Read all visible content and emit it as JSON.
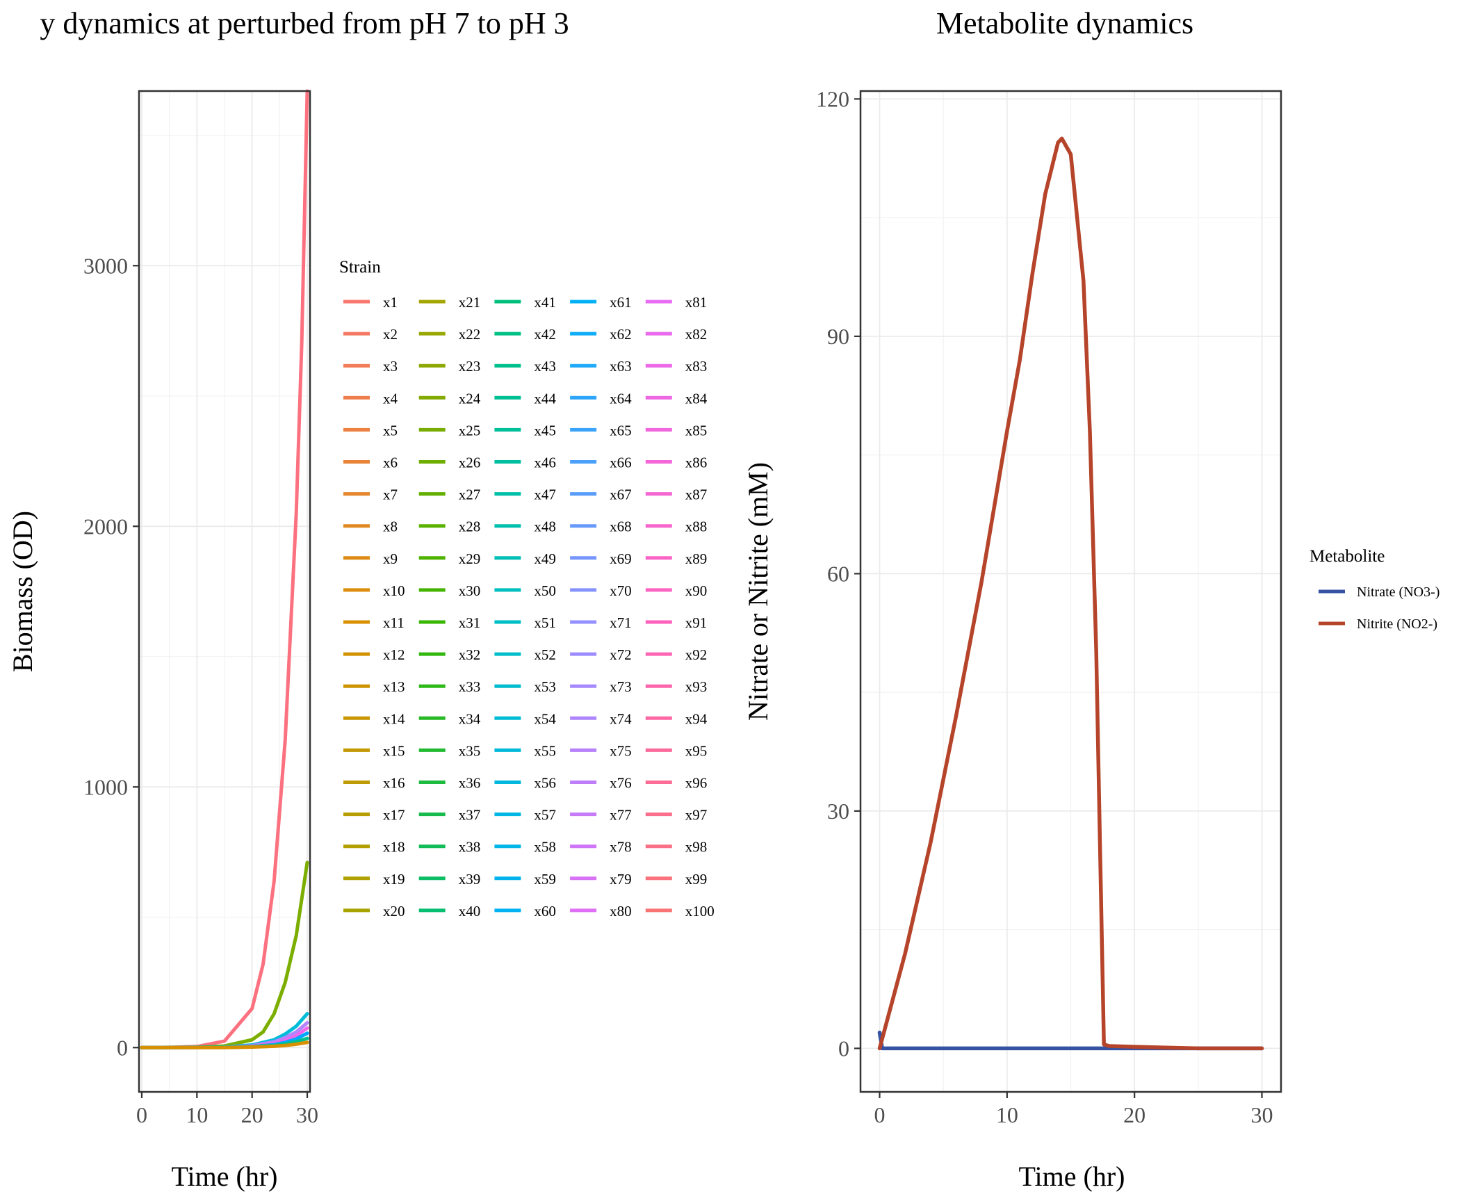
{
  "chart_data": [
    {
      "type": "line",
      "title": "y dynamics at perturbed from pH 7 to pH 3",
      "xlabel": "Time (hr)",
      "ylabel": "Biomass (OD)",
      "xlim": [
        -0.5,
        30.5
      ],
      "ylim": [
        -170,
        3670
      ],
      "xticks": [
        0,
        10,
        20,
        30
      ],
      "xtick_labels": [
        "0",
        "10",
        "20",
        "30"
      ],
      "yticks": [
        0,
        1000,
        2000,
        3000
      ],
      "ytick_labels": [
        "0",
        "1000",
        "2000",
        "3000"
      ],
      "grid": true,
      "legend_title": "Strain",
      "legend_position": "right",
      "legend_columns": 5,
      "legend_labels": [
        "x1",
        "x2",
        "x3",
        "x4",
        "x5",
        "x6",
        "x7",
        "x8",
        "x9",
        "x10",
        "x11",
        "x12",
        "x13",
        "x14",
        "x15",
        "x16",
        "x17",
        "x18",
        "x19",
        "x20",
        "x21",
        "x22",
        "x23",
        "x24",
        "x25",
        "x26",
        "x27",
        "x28",
        "x29",
        "x30",
        "x31",
        "x32",
        "x33",
        "x34",
        "x35",
        "x36",
        "x37",
        "x38",
        "x39",
        "x40",
        "x41",
        "x42",
        "x43",
        "x44",
        "x45",
        "x46",
        "x47",
        "x48",
        "x49",
        "x50",
        "x51",
        "x52",
        "x53",
        "x54",
        "x55",
        "x56",
        "x57",
        "x58",
        "x59",
        "x60",
        "x61",
        "x62",
        "x63",
        "x64",
        "x65",
        "x66",
        "x67",
        "x68",
        "x69",
        "x70",
        "x71",
        "x72",
        "x73",
        "x74",
        "x75",
        "x76",
        "x77",
        "x78",
        "x79",
        "x80",
        "x81",
        "x82",
        "x83",
        "x84",
        "x85",
        "x86",
        "x87",
        "x88",
        "x89",
        "x90",
        "x91",
        "x92",
        "x93",
        "x94",
        "x95",
        "x96",
        "x97",
        "x98",
        "x99",
        "x100"
      ],
      "color_stops": [
        "#F8766D",
        "#D89000",
        "#A3A500",
        "#39B600",
        "#00BF7D",
        "#00BFC4",
        "#00B0F6",
        "#9590FF",
        "#E76BF3",
        "#FF62BC",
        "#F8766D"
      ],
      "series": [
        {
          "name": "x100",
          "color": "#FC717F",
          "x": [
            0,
            5,
            10,
            15,
            20,
            22,
            24,
            26,
            28,
            29,
            30
          ],
          "y": [
            0,
            1,
            4,
            25,
            150,
            320,
            640,
            1180,
            2050,
            2700,
            3670
          ]
        },
        {
          "name": "x27",
          "color": "#7CAE00",
          "x": [
            0,
            10,
            15,
            20,
            22,
            24,
            26,
            28,
            30
          ],
          "y": [
            0,
            1,
            6,
            30,
            60,
            130,
            250,
            430,
            710
          ]
        },
        {
          "name": "x52",
          "color": "#00BCD8",
          "x": [
            0,
            15,
            20,
            24,
            26,
            28,
            30
          ],
          "y": [
            0,
            2,
            10,
            30,
            52,
            82,
            130
          ]
        },
        {
          "name": "x73",
          "color": "#B385FF",
          "x": [
            0,
            15,
            20,
            24,
            26,
            28,
            30
          ],
          "y": [
            0,
            1,
            7,
            22,
            38,
            60,
            95
          ]
        },
        {
          "name": "x85",
          "color": "#EF67EB",
          "x": [
            0,
            15,
            20,
            24,
            26,
            28,
            30
          ],
          "y": [
            0,
            1,
            5,
            15,
            27,
            45,
            75
          ]
        },
        {
          "name": "x60",
          "color": "#00A9FF",
          "x": [
            0,
            15,
            20,
            24,
            26,
            28,
            30
          ],
          "y": [
            0,
            1,
            4,
            11,
            20,
            33,
            55
          ]
        },
        {
          "name": "x35",
          "color": "#00C08B",
          "x": [
            0,
            15,
            20,
            24,
            26,
            28,
            30
          ],
          "y": [
            0,
            1,
            3,
            8,
            14,
            22,
            35
          ]
        },
        {
          "name": "x10",
          "color": "#D89000",
          "x": [
            0,
            15,
            20,
            24,
            26,
            28,
            30
          ],
          "y": [
            0,
            0,
            2,
            5,
            8,
            13,
            20
          ]
        }
      ]
    },
    {
      "type": "line",
      "title": "Metabolite dynamics",
      "xlabel": "Time (hr)",
      "ylabel": "Nitrate or Nitrite (mM)",
      "xlim": [
        -1.5,
        31.5
      ],
      "ylim": [
        -5.5,
        121
      ],
      "xticks": [
        0,
        10,
        20,
        30
      ],
      "xtick_labels": [
        "0",
        "10",
        "20",
        "30"
      ],
      "yticks": [
        0,
        30,
        60,
        90,
        120
      ],
      "ytick_labels": [
        "0",
        "30",
        "60",
        "90",
        "120"
      ],
      "grid": true,
      "legend_title": "Metabolite",
      "legend_position": "right",
      "series": [
        {
          "name": "Nitrate (NO3-)",
          "color": "#3552A3",
          "x": [
            0,
            0.2,
            30
          ],
          "y": [
            2,
            0,
            0
          ]
        },
        {
          "name": "Nitrite (NO2-)",
          "color": "#B5442A",
          "x": [
            0,
            2,
            4,
            6,
            8,
            10,
            11,
            12,
            13,
            14,
            14.3,
            15,
            16,
            16.5,
            17,
            17.3,
            17.6,
            18,
            20,
            25,
            30
          ],
          "y": [
            0,
            12,
            26,
            42,
            59,
            78,
            87,
            98,
            108,
            114.5,
            115,
            113,
            97,
            78,
            50,
            25,
            0.5,
            0.3,
            0.2,
            0,
            0
          ]
        }
      ]
    }
  ]
}
